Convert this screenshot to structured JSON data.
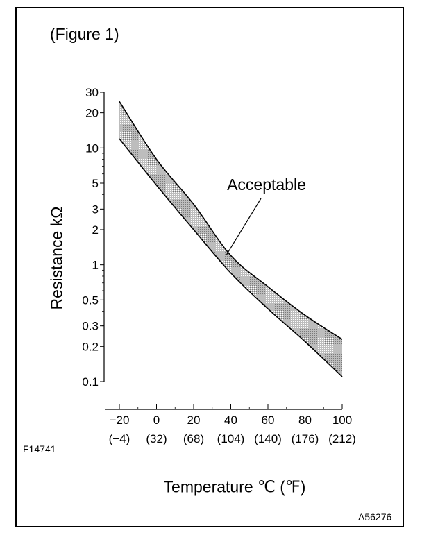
{
  "figure_label": "(Figure 1)",
  "reference_left": "F14741",
  "reference_right": "A56276",
  "chart_data": {
    "type": "area",
    "title": "",
    "xlabel": "Temperature ℃ (℉)",
    "ylabel": "Resistance kΩ",
    "y_scale": "log",
    "xlim": [
      -20,
      100
    ],
    "ylim": [
      0.1,
      30
    ],
    "x_ticks": [
      "−20",
      "0",
      "20",
      "40",
      "60",
      "80",
      "100"
    ],
    "x_ticks_secondary": [
      "(−4)",
      "(32)",
      "(68)",
      "(104)",
      "(140)",
      "(176)",
      "(212)"
    ],
    "y_ticks": [
      "0.1",
      "0.2",
      "0.3",
      "0.5",
      "1",
      "2",
      "3",
      "5",
      "10",
      "20",
      "30"
    ],
    "grid": false,
    "annotation": "Acceptable",
    "fill_color": "#bdbdbd",
    "series": [
      {
        "role": "upper",
        "x": [
          -20,
          0,
          20,
          40,
          60,
          80,
          100
        ],
        "y": [
          25,
          8,
          3.3,
          1.2,
          0.65,
          0.37,
          0.23
        ]
      },
      {
        "role": "lower",
        "x": [
          -20,
          0,
          20,
          40,
          60,
          80,
          100
        ],
        "y": [
          12,
          4.8,
          2.0,
          0.85,
          0.42,
          0.22,
          0.11
        ]
      }
    ]
  }
}
